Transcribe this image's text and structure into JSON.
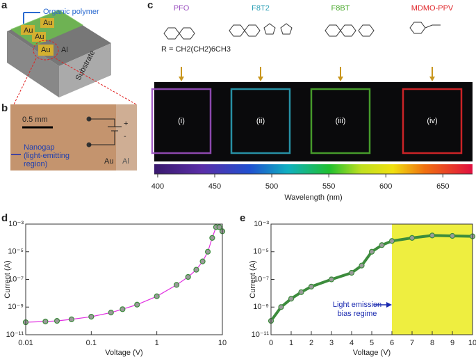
{
  "panel_a": {
    "label": "a",
    "polymer": "Organic polymer",
    "electrodes": [
      "Au",
      "Au",
      "Au",
      "Au"
    ],
    "al": "Al",
    "substrate": "Substrate"
  },
  "panel_b": {
    "label": "b",
    "scale": "0.5 mm",
    "plus": "+",
    "minus": "-",
    "nanogap": [
      "Nanogap",
      "(light-emitting",
      "region)"
    ],
    "au": "Au",
    "al": "Al"
  },
  "panel_c": {
    "label": "c",
    "polymers": [
      {
        "name": "PFO",
        "color": "#9a4fc0"
      },
      {
        "name": "F8T2",
        "color": "#2a9fb5"
      },
      {
        "name": "F8BT",
        "color": "#4caa2f"
      },
      {
        "name": "MDMO-PPV",
        "color": "#e0262a"
      }
    ],
    "r_group": "R = CH2(CH2)6CH3",
    "roman": [
      "(i)",
      "(ii)",
      "(iii)",
      "(iv)"
    ]
  },
  "chart_data": [
    {
      "type": "colorbar",
      "xlabel": "Wavelength (nm)",
      "xlim": [
        397,
        676
      ],
      "xticks": [
        400,
        450,
        500,
        550,
        600,
        650
      ]
    },
    {
      "type": "line",
      "panel_label": "d",
      "xlabel": "Voltage (V)",
      "ylabel": "Current (A)",
      "xscale": "log",
      "yscale": "log",
      "xlim": [
        0.01,
        10
      ],
      "ylim": [
        1e-11,
        0.001
      ],
      "xticks": [
        0.01,
        0.1,
        1,
        10
      ],
      "yticks": [
        {
          "value": 1e-11,
          "label": "10⁻¹¹"
        },
        {
          "value": 1e-09,
          "label": "10⁻⁹"
        },
        {
          "value": 1e-07,
          "label": "10⁻⁷"
        },
        {
          "value": 1e-05,
          "label": "10⁻⁵"
        },
        {
          "value": 0.001,
          "label": "10⁻³"
        }
      ],
      "x": [
        0.01,
        0.02,
        0.03,
        0.05,
        0.1,
        0.2,
        0.3,
        0.5,
        1,
        2,
        3,
        4,
        5,
        6,
        7,
        8,
        9,
        10
      ],
      "series": [
        {
          "color": "#3c8c3c",
          "line_color": "#e030e0",
          "values": [
            8e-11,
            9e-11,
            1e-10,
            1.3e-10,
            2e-10,
            4e-10,
            7e-10,
            1.5e-09,
            6e-09,
            4e-08,
            1.5e-07,
            5e-07,
            2e-06,
            1e-05,
            0.0001,
            0.0006,
            0.0006,
            0.0003
          ]
        }
      ]
    },
    {
      "type": "line",
      "panel_label": "e",
      "xlabel": "Voltage (V)",
      "ylabel": "Current (A)",
      "yscale": "log",
      "xlim": [
        0,
        10
      ],
      "ylim": [
        1e-11,
        0.001
      ],
      "xticks": [
        0,
        1,
        2,
        3,
        4,
        5,
        6,
        7,
        8,
        9,
        10
      ],
      "yticks": [
        {
          "value": 1e-11,
          "label": "10⁻¹¹"
        },
        {
          "value": 1e-09,
          "label": "10⁻⁹"
        },
        {
          "value": 1e-07,
          "label": "10⁻⁷"
        },
        {
          "value": 1e-05,
          "label": "10⁻⁵"
        },
        {
          "value": 0.001,
          "label": "10⁻³"
        }
      ],
      "shaded_region": {
        "x": [
          6,
          10
        ],
        "color": "#eeee40"
      },
      "annotation": [
        "Light emission",
        "bias regime"
      ],
      "x": [
        0,
        0.5,
        1,
        1.5,
        2,
        3,
        4,
        4.5,
        5,
        5.5,
        6,
        7,
        8,
        9,
        10
      ],
      "series": [
        {
          "color": "#3c8c3c",
          "values": [
            1e-10,
            1e-09,
            4e-09,
            1.2e-08,
            3e-08,
            1e-07,
            3e-07,
            1e-06,
            1e-05,
            3e-05,
            6e-05,
            0.0001,
            0.00015,
            0.00014,
            0.00013
          ]
        }
      ]
    }
  ]
}
